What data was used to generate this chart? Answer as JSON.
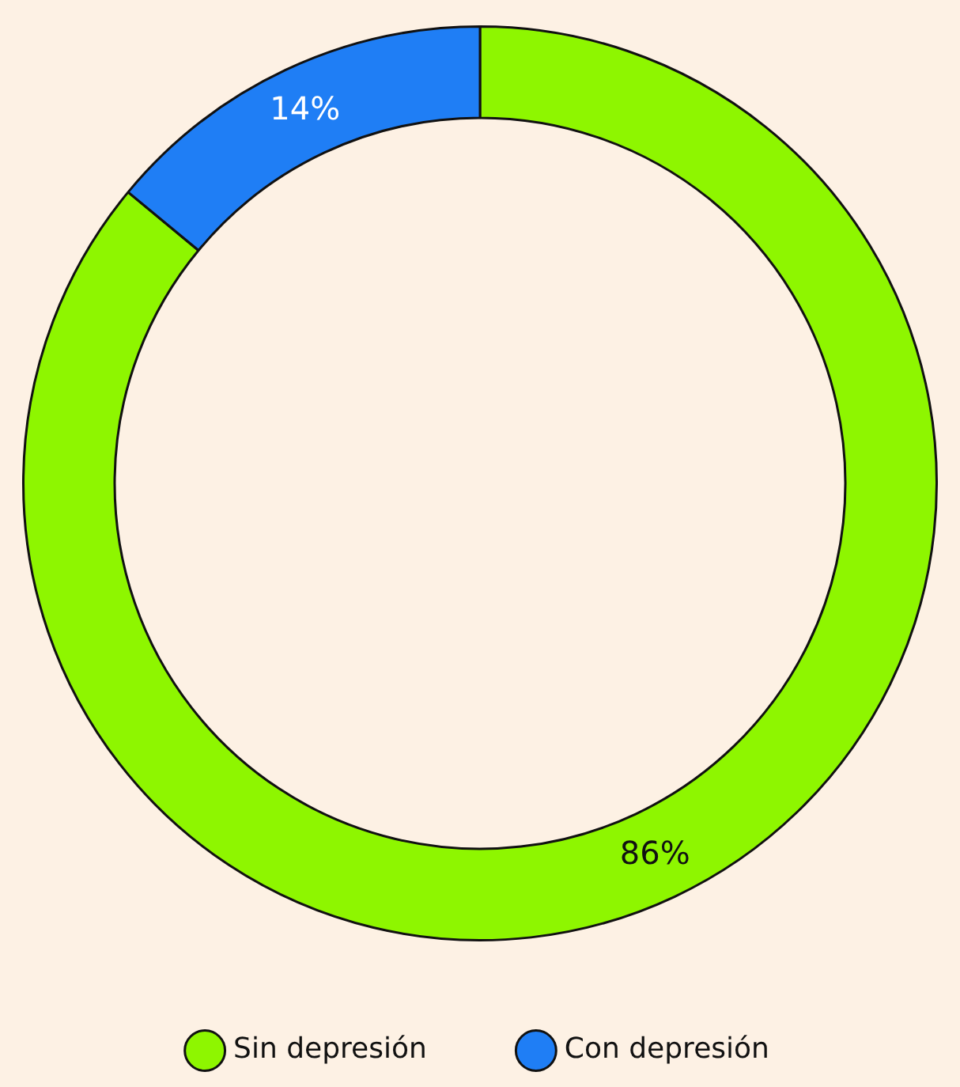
{
  "chart_data": {
    "type": "donut",
    "categories": [
      "Sin depresión",
      "Con depresión"
    ],
    "values": [
      86,
      14
    ],
    "colors": [
      "#8ef600",
      "#1f7ef5"
    ],
    "value_labels": [
      "86%",
      "14%"
    ],
    "legend": "bottom"
  }
}
